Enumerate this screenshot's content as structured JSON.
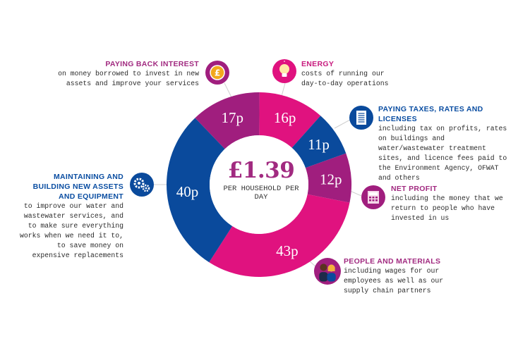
{
  "chart_data": {
    "type": "pie",
    "variant": "donut",
    "categories": [
      "Energy",
      "Paying taxes, rates and licenses",
      "Net profit",
      "People and materials",
      "Maintaining and building new assets and equipment",
      "Paying back interest"
    ],
    "values": [
      16,
      11,
      12,
      43,
      40,
      17
    ],
    "value_labels": [
      "16p",
      "11p",
      "12p",
      "43p",
      "40p",
      "17p"
    ],
    "colors": [
      "#e0127f",
      "#0a4a9c",
      "#a01e7e",
      "#e0127f",
      "#0a4a9c",
      "#a01e7e"
    ],
    "center_value": "£1.39",
    "center_caption": "PER HOUSEHOLD PER DAY"
  },
  "blocks": {
    "interest": {
      "title": "PAYING BACK INTEREST",
      "desc": "on money borrowed to invest in new assets and improve your services"
    },
    "energy": {
      "title": "ENERGY",
      "desc": "costs of running our day-to-day operations"
    },
    "taxes": {
      "title": "PAYING TAXES, RATES AND LICENSES",
      "desc": "including tax on profits, rates on buildings and water/wastewater treatment sites, and licence fees paid to the Environment Agency, OFWAT and others"
    },
    "profit": {
      "title": "NET PROFIT",
      "desc": "including the money that we return to people who have invested in us"
    },
    "people": {
      "title": "PEOPLE AND MATERIALS",
      "desc": "including wages for our employees as well as our supply chain partners"
    },
    "assets": {
      "title": "MAINTAINING AND BUILDING NEW ASSETS AND EQUIPMENT",
      "desc": "to improve our water and wastewater services, and to make sure everything works when we need it to, to save money on expensive replacements"
    }
  },
  "icons": {
    "interest": "pound-coin-icon",
    "energy": "lightbulb-icon",
    "taxes": "document-icon",
    "profit": "calculator-icon",
    "people": "people-icon",
    "assets": "gears-icon"
  },
  "icon_colors": {
    "interest": "#a01e7e",
    "energy": "#e0127f",
    "taxes": "#0a4a9c",
    "profit": "#a01e7e",
    "people": "#a01e7e",
    "assets": "#0a4a9c"
  }
}
